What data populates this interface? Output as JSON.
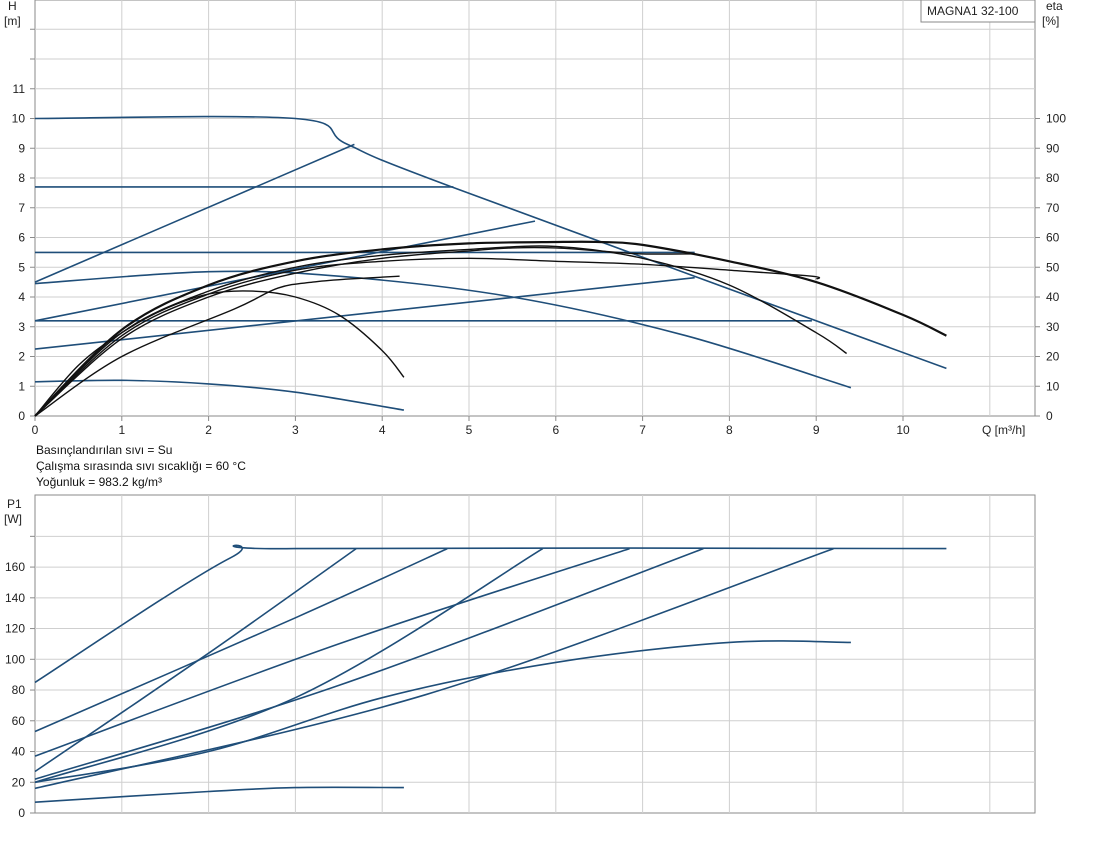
{
  "pump_model": "MAGNA1 32-100",
  "fluid_info": [
    "Basınçlandırılan sıvı = Su",
    "Çalışma sırasında sıvı sıcaklığı = 60 °C",
    "Yoğunluk = 983.2 kg/m³"
  ],
  "chart_data": [
    {
      "type": "line",
      "title": "",
      "xlabel": "Q [m³/h]",
      "ylabel": "H",
      "ylabel_unit": "[m]",
      "y2label": "eta",
      "y2label_unit": "[%]",
      "xlim": [
        0,
        11.5
      ],
      "ylim": [
        0,
        14
      ],
      "y2lim": [
        0,
        140
      ],
      "x_ticks": [
        0,
        1,
        2,
        3,
        4,
        5,
        6,
        7,
        8,
        9,
        10
      ],
      "y_ticks": [
        0,
        1,
        2,
        3,
        4,
        5,
        6,
        7,
        8,
        9,
        10,
        11
      ],
      "y2_ticks": [
        0,
        10,
        20,
        30,
        40,
        50,
        60,
        70,
        80,
        90,
        100
      ],
      "grid": true,
      "series": [
        {
          "group": "H",
          "color": "#1f4e79",
          "x": [
            0,
            3,
            3.6,
            4.8,
            10.5
          ],
          "y": [
            10,
            10,
            9.13,
            7.7,
            1.6
          ]
        },
        {
          "group": "H",
          "color": "#1f4e79",
          "x": [
            0,
            4.82
          ],
          "y": [
            7.7,
            7.7
          ]
        },
        {
          "group": "H",
          "color": "#1f4e79",
          "x": [
            0,
            7.6
          ],
          "y": [
            5.5,
            5.5
          ]
        },
        {
          "group": "H",
          "color": "#1f4e79",
          "x": [
            0,
            8.95
          ],
          "y": [
            3.2,
            3.2
          ]
        },
        {
          "group": "H",
          "color": "#1f4e79",
          "x": [
            0,
            2.0,
            3.5,
            5.5,
            7.5,
            9.4
          ],
          "y": [
            4.45,
            4.85,
            4.7,
            4.0,
            2.7,
            0.95
          ]
        },
        {
          "group": "H",
          "color": "#1f4e79",
          "x": [
            0,
            1.0,
            2.0,
            3.0,
            4.25
          ],
          "y": [
            1.15,
            1.2,
            1.08,
            0.8,
            0.2
          ]
        },
        {
          "group": "eta",
          "color": "#1f4e79",
          "x": [
            0,
            3.68
          ],
          "y": [
            45,
            91.3
          ]
        },
        {
          "group": "eta",
          "color": "#1f4e79",
          "x": [
            0,
            5.76
          ],
          "y": [
            32,
            65.5
          ]
        },
        {
          "group": "eta",
          "color": "#1f4e79",
          "x": [
            0,
            7.6
          ],
          "y": [
            22.5,
            46.5
          ]
        },
        {
          "group": "eta",
          "color": "#111111",
          "x": [
            0,
            0.5,
            1,
            1.5,
            2,
            2.5,
            3,
            3.5,
            4,
            4.25
          ],
          "y": [
            0,
            17,
            28,
            36,
            41,
            42,
            40,
            34,
            22,
            13
          ]
        },
        {
          "group": "eta",
          "color": "#111111",
          "x": [
            0,
            1,
            2,
            3,
            4,
            5,
            6,
            7,
            8,
            9,
            9.35
          ],
          "y": [
            0,
            28,
            42,
            50,
            54,
            56,
            57,
            53,
            44,
            28,
            21
          ]
        },
        {
          "group": "eta",
          "color": "#111111",
          "x": [
            0,
            1,
            2,
            3,
            4,
            5,
            6,
            6.5,
            7,
            8,
            9,
            10,
            10.5
          ],
          "y": [
            0,
            29,
            44,
            52,
            56,
            58,
            58.5,
            58.5,
            57.5,
            52,
            45,
            34,
            27
          ]
        },
        {
          "group": "eta",
          "color": "#111111",
          "x": [
            0,
            1,
            2,
            3,
            4,
            5,
            6,
            7,
            8,
            8.95,
            9.0
          ],
          "y": [
            0,
            27,
            41,
            49,
            52,
            53,
            52,
            51,
            49,
            47,
            46
          ]
        },
        {
          "group": "eta",
          "color": "#111111",
          "x": [
            0,
            1,
            2.3,
            2.8,
            3.2,
            3.6,
            4.2
          ],
          "y": [
            0,
            20,
            36,
            43,
            45,
            46,
            47
          ]
        },
        {
          "group": "eta",
          "color": "#111111",
          "x": [
            0,
            1,
            2,
            3,
            4,
            5,
            5.5,
            6,
            6.5,
            7,
            7.6
          ],
          "y": [
            0,
            26,
            40,
            48,
            53,
            55.5,
            56.5,
            56.5,
            55.5,
            54.5,
            54.5
          ]
        }
      ]
    },
    {
      "type": "line",
      "title": "",
      "xlabel": "",
      "ylabel": "P1",
      "ylabel_unit": "[W]",
      "xlim": [
        0,
        11.5
      ],
      "ylim": [
        0,
        180
      ],
      "y_ticks": [
        0,
        20,
        40,
        60,
        80,
        100,
        120,
        140,
        160
      ],
      "grid": true,
      "series": [
        {
          "x": [
            0,
            2.25,
            3,
            10.5
          ],
          "y": [
            85,
            166,
            172,
            172
          ]
        },
        {
          "x": [
            0,
            2,
            3.7
          ],
          "y": [
            27,
            104,
            172
          ]
        },
        {
          "x": [
            0,
            3,
            4.75
          ],
          "y": [
            53,
            127,
            172
          ]
        },
        {
          "x": [
            0,
            3,
            5.85
          ],
          "y": [
            20,
            75,
            172
          ]
        },
        {
          "x": [
            0,
            3.5,
            6.85
          ],
          "y": [
            37,
            110,
            172
          ]
        },
        {
          "x": [
            0,
            3.5,
            7.7
          ],
          "y": [
            22,
            83,
            172
          ]
        },
        {
          "x": [
            0,
            4.5,
            9.2
          ],
          "y": [
            16,
            77,
            172
          ]
        },
        {
          "x": [
            0,
            2,
            4,
            6,
            8,
            9.4
          ],
          "y": [
            20,
            40,
            75,
            98,
            111,
            111
          ]
        },
        {
          "x": [
            0,
            2,
            3,
            4.25
          ],
          "y": [
            7,
            14,
            16.5,
            16.5
          ]
        }
      ]
    }
  ]
}
